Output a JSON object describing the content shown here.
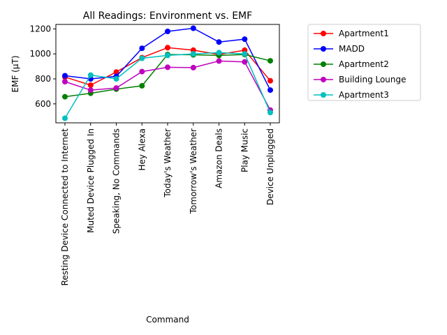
{
  "chart_data": {
    "type": "line",
    "title": "All Readings: Environment vs. EMF",
    "xlabel": "Command",
    "ylabel": "EMF (µT)",
    "ylim": [
      448,
      1236
    ],
    "yticks": [
      600,
      800,
      1000,
      1200
    ],
    "grid": false,
    "legend_placement": "outside-top-right",
    "categories": [
      "Resting Device Connected to Internet",
      "Muted Device Plugged In",
      "Speaking, No Commands",
      "Hey Alexa",
      "Today's Weather",
      "Tomorrow's Weather",
      "Amazon Deals",
      "Play Music",
      "Device Unplugged"
    ],
    "series": [
      {
        "name": "Apartment1",
        "color": "#ff0000",
        "values": [
          815,
          750,
          855,
          970,
          1050,
          1030,
          995,
          1030,
          785
        ]
      },
      {
        "name": "MADD",
        "color": "#0000ff",
        "values": [
          825,
          800,
          820,
          1045,
          1180,
          1205,
          1095,
          1118,
          710
        ]
      },
      {
        "name": "Apartment2",
        "color": "#008000",
        "values": [
          657,
          685,
          718,
          745,
          995,
          993,
          988,
          995,
          945
        ]
      },
      {
        "name": "Building Lounge",
        "color": "#bf00bf",
        "values": [
          778,
          710,
          727,
          858,
          893,
          890,
          943,
          936,
          550
        ]
      },
      {
        "name": "Apartment3",
        "color": "#00bfbf",
        "values": [
          485,
          830,
          800,
          965,
          988,
          1000,
          1010,
          1000,
          530
        ]
      }
    ]
  }
}
